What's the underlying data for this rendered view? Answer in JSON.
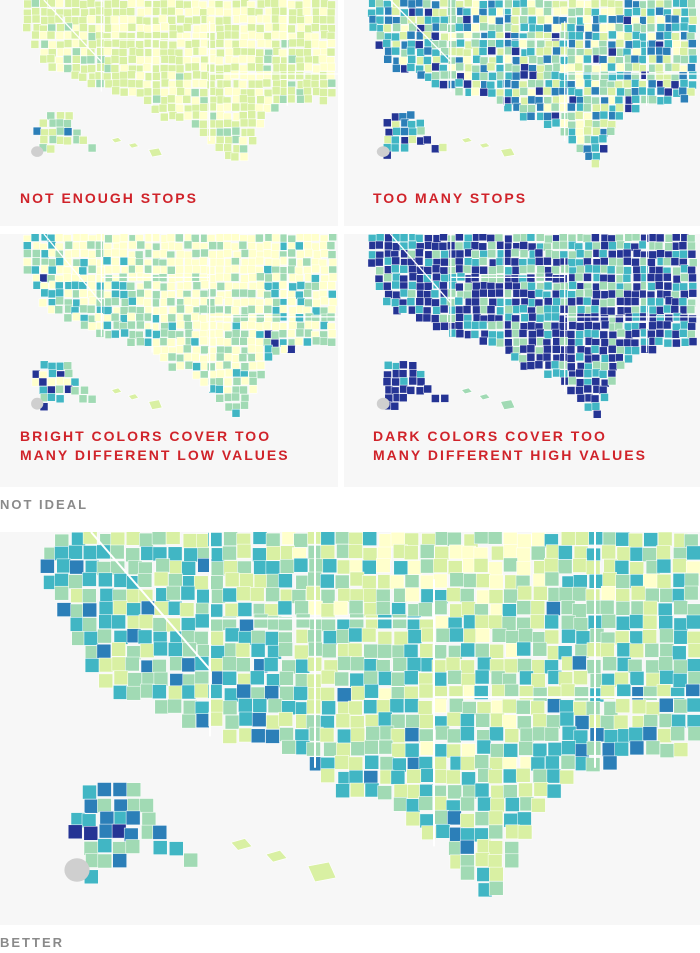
{
  "panels": [
    {
      "id": "p1",
      "label_lines": [
        "NOT ENOUGH STOPS"
      ],
      "scale": "light"
    },
    {
      "id": "p2",
      "label_lines": [
        "TOO MANY STOPS"
      ],
      "scale": "mixed"
    },
    {
      "id": "p3",
      "label_lines": [
        "BRIGHT COLORS COVER TOO",
        "MANY DIFFERENT LOW VALUES"
      ],
      "scale": "bright"
    },
    {
      "id": "p4",
      "label_lines": [
        "DARK COLORS COVER TOO",
        "MANY DIFFERENT HIGH VALUES"
      ],
      "scale": "dark"
    },
    {
      "id": "p5",
      "label_lines": [],
      "scale": "balanced"
    }
  ],
  "section_labels": {
    "not_ideal": "NOT IDEAL",
    "better": "BETTER"
  },
  "colors": {
    "label_red": "#d0232a",
    "section_gray": "#8a8a8a",
    "panel_bg": "#f7f7f7",
    "no_data": "#cfcfcf",
    "ramp": [
      "#ffffcc",
      "#d9f0a3",
      "#a1dab4",
      "#41b6c4",
      "#2c7fb8",
      "#253494"
    ]
  }
}
